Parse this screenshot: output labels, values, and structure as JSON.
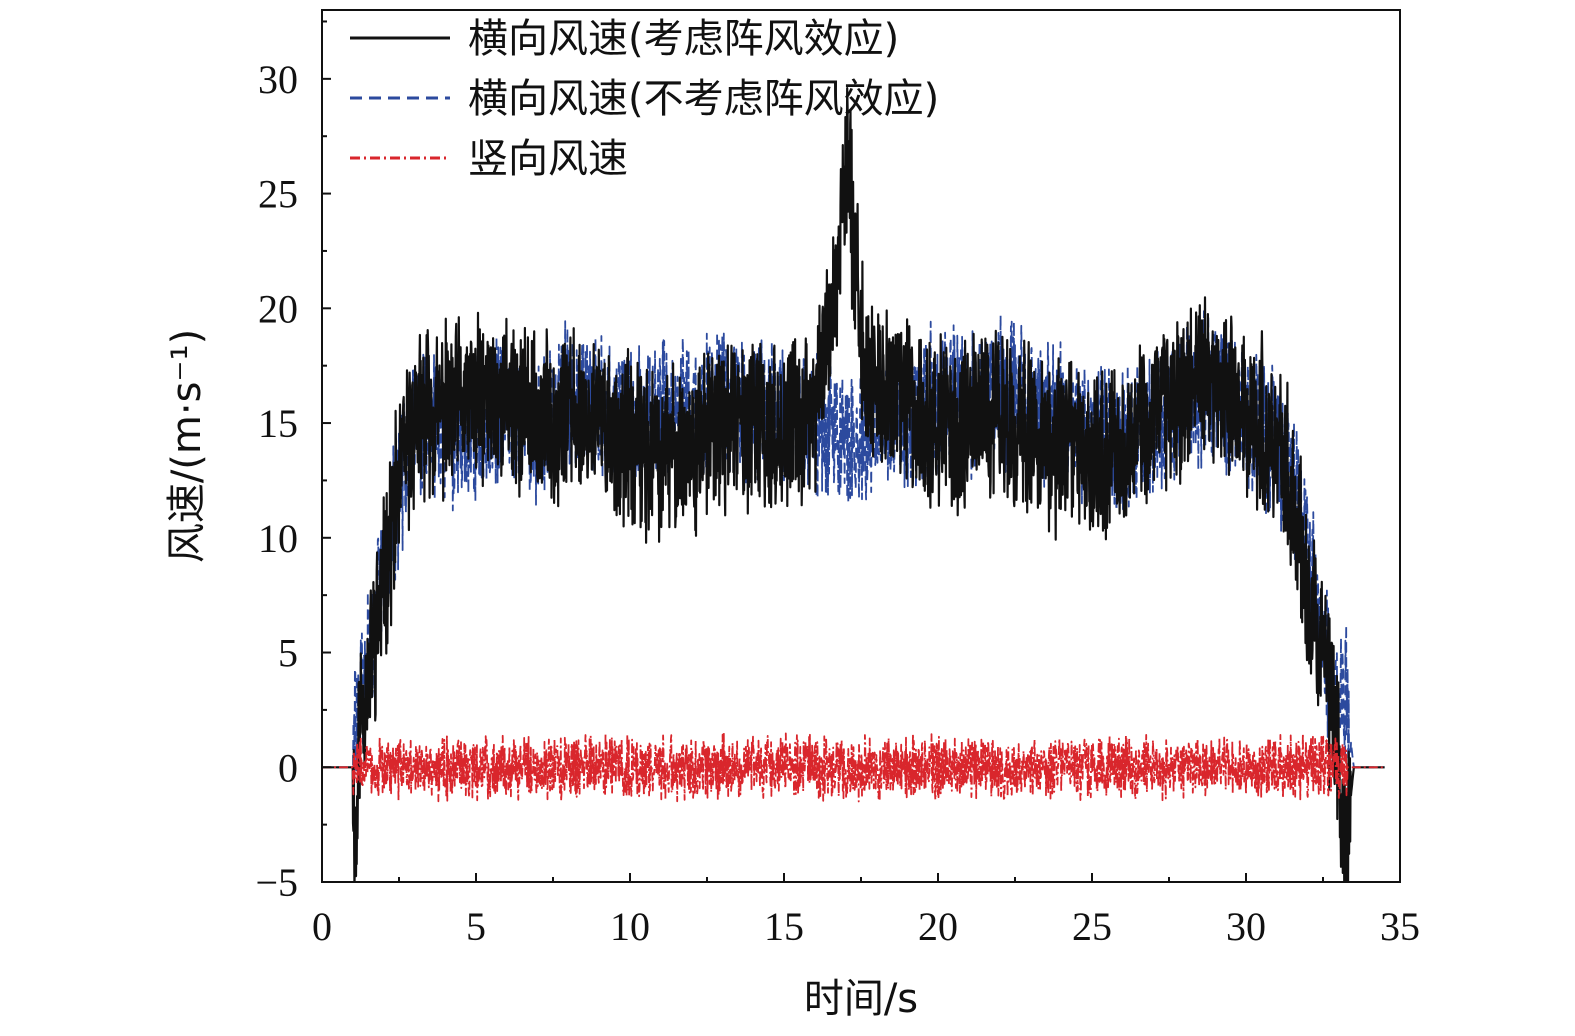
{
  "chart_data": {
    "type": "line",
    "title": "",
    "xlabel": "时间/s",
    "ylabel": "风速/(m·s⁻¹)",
    "xlim": [
      0,
      35
    ],
    "ylim": [
      -5,
      33
    ],
    "x_ticks": [
      0,
      5,
      10,
      15,
      20,
      25,
      30,
      35
    ],
    "y_ticks": [
      -5,
      0,
      5,
      10,
      15,
      20,
      25,
      30
    ],
    "x_tick_labels": [
      "0",
      "5",
      "10",
      "15",
      "20",
      "25",
      "30",
      "35"
    ],
    "y_tick_labels": [
      "−5",
      "0",
      "5",
      "10",
      "15",
      "20",
      "25",
      "30"
    ],
    "grid": false,
    "legend_position": "top-left",
    "series": [
      {
        "name": "横向风速(考虑阵风效应)",
        "color": "#111111",
        "style": "solid",
        "x": [
          0,
          1.0,
          1.1,
          1.2,
          1.5,
          2.0,
          2.5,
          3.0,
          3.5,
          4.0,
          5.0,
          6.0,
          7.0,
          8.0,
          9.0,
          10.0,
          11.0,
          12.0,
          13.0,
          14.0,
          15.0,
          16.0,
          16.7,
          17.0,
          17.3,
          17.6,
          18.0,
          19.0,
          20.0,
          21.0,
          22.0,
          23.0,
          24.0,
          25.0,
          26.0,
          27.0,
          28.0,
          28.5,
          29.0,
          30.0,
          31.0,
          31.5,
          32.0,
          32.5,
          33.0,
          33.2,
          33.5,
          34.0,
          34.5
        ],
        "y": [
          0,
          0,
          -4.3,
          2.0,
          4.0,
          8.0,
          12.5,
          15.0,
          15.5,
          15.5,
          16.0,
          16.0,
          15.0,
          15.5,
          15.0,
          14.0,
          13.5,
          14.0,
          15.0,
          15.0,
          14.5,
          15.5,
          21.0,
          26.5,
          23.0,
          17.0,
          16.5,
          16.0,
          15.0,
          15.0,
          15.5,
          14.5,
          14.0,
          13.5,
          14.0,
          15.5,
          16.5,
          17.0,
          16.5,
          15.5,
          14.5,
          12.0,
          8.0,
          4.5,
          0.5,
          -4.0,
          0,
          0,
          0
        ]
      },
      {
        "name": "横向风速(不考虑阵风效应)",
        "color": "#2c4a9e",
        "style": "dashed",
        "x": [
          0,
          1.0,
          1.1,
          1.3,
          1.6,
          2.0,
          2.5,
          3.0,
          3.5,
          4.0,
          5.0,
          6.0,
          7.0,
          8.0,
          9.0,
          10.0,
          11.0,
          12.0,
          13.0,
          14.0,
          15.0,
          16.0,
          17.0,
          18.0,
          19.0,
          20.0,
          21.0,
          22.0,
          23.0,
          24.0,
          25.0,
          26.0,
          27.0,
          28.0,
          29.0,
          30.0,
          31.0,
          31.5,
          32.0,
          32.5,
          33.0,
          33.2,
          33.5,
          34.0,
          34.5
        ],
        "y": [
          0,
          0,
          2.5,
          3.0,
          5.5,
          8.5,
          12.0,
          15.5,
          15.0,
          14.5,
          15.0,
          15.5,
          15.0,
          16.0,
          15.5,
          15.0,
          15.5,
          15.5,
          16.0,
          15.5,
          15.0,
          15.0,
          14.0,
          15.0,
          15.5,
          16.0,
          16.0,
          16.5,
          16.0,
          15.0,
          14.5,
          14.5,
          15.0,
          16.0,
          16.5,
          15.0,
          14.0,
          12.5,
          9.0,
          6.0,
          2.0,
          3.5,
          0,
          0,
          0
        ]
      },
      {
        "name": "竖向风速",
        "color": "#d9262c",
        "style": "dashdot",
        "x": [
          0,
          1.0,
          33.3,
          34.5
        ],
        "y": [
          0,
          0,
          0,
          0
        ],
        "fluctuation_range": [
          -2.5,
          3.0
        ]
      }
    ]
  }
}
